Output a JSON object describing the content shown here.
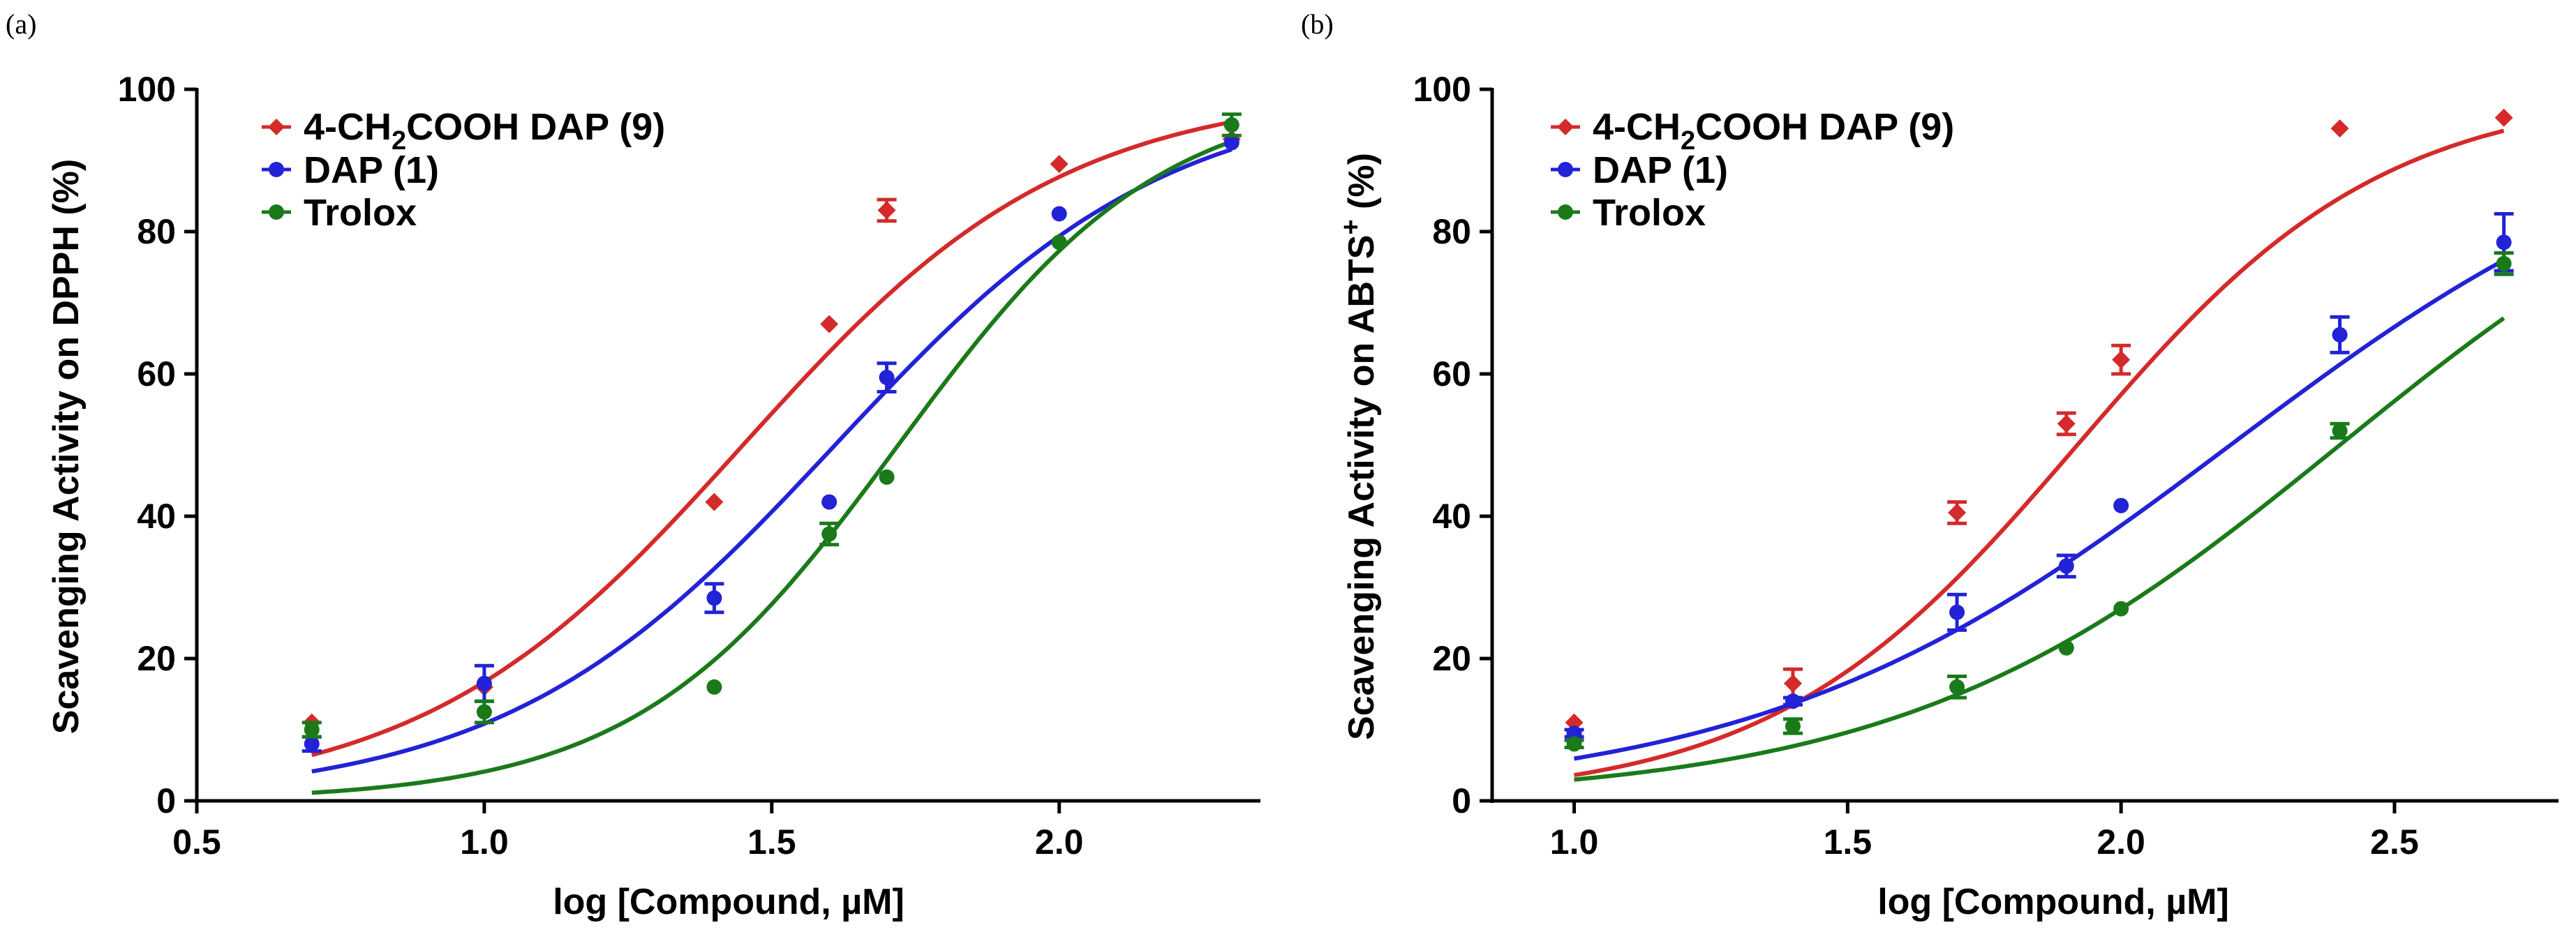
{
  "chart_data": [
    {
      "panel": "(a)",
      "type": "scatter",
      "xlabel": "log [Compound, µM]",
      "ylabel": "Scavenging Activity on DPPH (%)",
      "xlim": [
        0.5,
        2.35
      ],
      "ylim": [
        0,
        100
      ],
      "xticks": [
        "0.5",
        "1.0",
        "1.5",
        "2.0"
      ],
      "xtick_values": [
        0.5,
        1.0,
        1.5,
        2.0
      ],
      "yticks": [
        "0",
        "20",
        "40",
        "60",
        "80",
        "100"
      ],
      "ytick_values": [
        0,
        20,
        40,
        60,
        80,
        100
      ],
      "legend_position": "top-left",
      "series": [
        {
          "name": "4-CH2COOH DAP (9)",
          "label_main": "4-CH",
          "label_sub": "2",
          "label_rest": "COOH DAP (9)",
          "color": "#d42a2a",
          "marker": "diamond",
          "x": [
            0.7,
            1.0,
            1.4,
            1.6,
            1.7,
            2.0,
            2.3
          ],
          "y": [
            11,
            16,
            42,
            67,
            83,
            89.5,
            93
          ],
          "err": [
            0,
            0,
            0,
            0,
            1.5,
            0,
            0
          ],
          "fit": {
            "bottom": 0,
            "top": 100,
            "logec50": 1.45,
            "hill": 1.55
          }
        },
        {
          "name": "DAP (1)",
          "label_main": "DAP (1)",
          "color": "#2222d6",
          "marker": "circle",
          "x": [
            0.7,
            1.0,
            1.4,
            1.6,
            1.7,
            2.0,
            2.3
          ],
          "y": [
            8,
            16.5,
            28.5,
            42,
            59.5,
            82.5,
            92.5
          ],
          "err": [
            1,
            2.5,
            2,
            0,
            2,
            0,
            0
          ],
          "fit": {
            "bottom": 0,
            "top": 100,
            "logec50": 1.61,
            "hill": 1.5
          }
        },
        {
          "name": "Trolox",
          "label_main": "Trolox",
          "color": "#1a7a1a",
          "marker": "circle",
          "x": [
            0.7,
            1.0,
            1.4,
            1.6,
            1.7,
            2.0,
            2.3
          ],
          "y": [
            10,
            12.5,
            16,
            37.5,
            45.5,
            78.5,
            95
          ],
          "err": [
            1,
            1.5,
            0,
            1.5,
            0,
            0,
            1.5
          ],
          "fit": {
            "bottom": 0,
            "top": 100,
            "logec50": 1.72,
            "hill": 1.9
          }
        }
      ]
    },
    {
      "panel": "(b)",
      "type": "scatter",
      "xlabel": "log [Compound, µM]",
      "ylabel": "Scavenging Activity on ABTS",
      "ylabel_sup": "+",
      "ylabel_end": " (%)",
      "xlim": [
        0.85,
        2.8
      ],
      "ylim": [
        0,
        100
      ],
      "xticks": [
        "1.0",
        "1.5",
        "2.0",
        "2.5"
      ],
      "xtick_values": [
        1.0,
        1.5,
        2.0,
        2.5
      ],
      "yticks": [
        "0",
        "20",
        "40",
        "60",
        "80",
        "100"
      ],
      "ytick_values": [
        0,
        20,
        40,
        60,
        80,
        100
      ],
      "legend_position": "top-left",
      "series": [
        {
          "name": "4-CH2COOH DAP (9)",
          "label_main": "4-CH",
          "label_sub": "2",
          "label_rest": "COOH DAP (9)",
          "color": "#d42a2a",
          "marker": "diamond",
          "x": [
            1.0,
            1.4,
            1.7,
            1.9,
            2.0,
            2.4,
            2.7
          ],
          "y": [
            11,
            16.5,
            40.5,
            53,
            62,
            94.5,
            96
          ],
          "err": [
            0,
            2,
            1.5,
            1.5,
            2,
            0,
            0
          ],
          "fit": {
            "bottom": 0,
            "top": 100,
            "logec50": 1.92,
            "hill": 1.55
          }
        },
        {
          "name": "DAP (1)",
          "label_main": "DAP (1)",
          "color": "#2222d6",
          "marker": "circle",
          "x": [
            1.0,
            1.4,
            1.7,
            1.9,
            2.0,
            2.4,
            2.7
          ],
          "y": [
            9.5,
            14,
            26.5,
            33,
            41.5,
            65.5,
            78.5
          ],
          "err": [
            0.5,
            0.5,
            2.5,
            1.5,
            0,
            2.5,
            4
          ],
          "fit": {
            "bottom": 0,
            "top": 100,
            "logec50": 2.2,
            "hill": 1.0
          }
        },
        {
          "name": "Trolox",
          "label_main": "Trolox",
          "color": "#1a7a1a",
          "marker": "circle",
          "x": [
            1.0,
            1.4,
            1.7,
            1.9,
            2.0,
            2.4,
            2.7
          ],
          "y": [
            8,
            10.5,
            16,
            21.5,
            27,
            52,
            75.5
          ],
          "err": [
            0.5,
            1,
            1.5,
            0,
            0,
            1,
            1.5
          ],
          "fit": {
            "bottom": 0,
            "top": 100,
            "logec50": 2.4,
            "hill": 1.08
          }
        }
      ]
    }
  ]
}
